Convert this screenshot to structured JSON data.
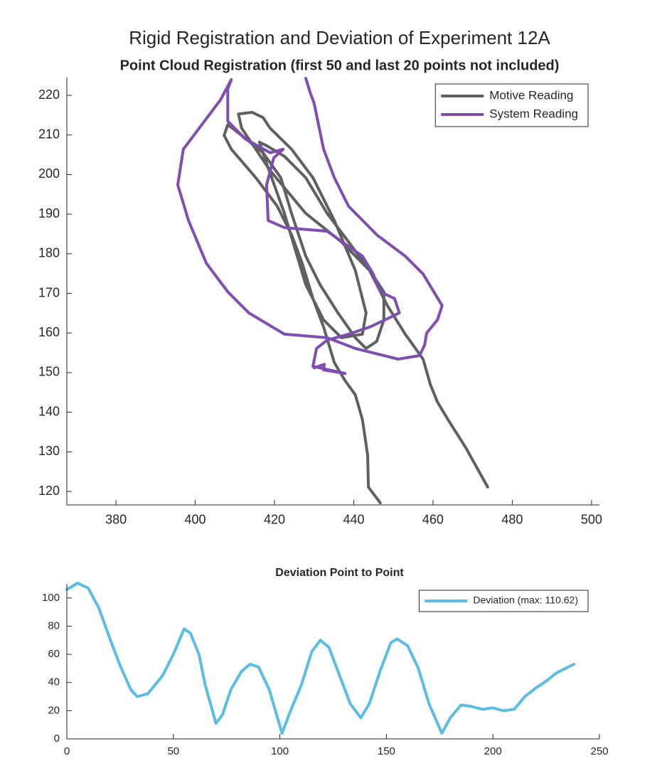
{
  "chart_data": [
    {
      "type": "line",
      "title": "Rigid Registration and Deviation of Experiment 12A",
      "subtitle": "Point Cloud Registration (first 50 and last 20 points not included)",
      "xlim": [
        367.6,
        502
      ],
      "ylim": [
        116.6,
        224.5
      ],
      "xticks": [
        380,
        400,
        420,
        440,
        460,
        480,
        500
      ],
      "yticks": [
        120,
        130,
        140,
        150,
        160,
        170,
        180,
        190,
        200,
        210,
        220
      ],
      "legend": "northeast",
      "series": [
        {
          "name": "Motive Reading",
          "color": "#606060",
          "x": [
            473.8,
            468.3,
            463.8,
            461.1,
            459.3,
            457.5,
            453.0,
            448.5,
            444.0,
            438.7,
            433.3,
            427.9,
            422.5,
            418.0,
            416.2,
            418.0,
            422.5,
            427.9,
            432.4,
            436.9,
            442.2,
            443.1,
            440.4,
            435.1,
            429.7,
            424.3,
            418.9,
            417.1,
            414.4,
            410.9,
            411.7,
            418.9,
            427.9,
            436.9,
            444.0,
            447.6,
            447.6,
            445.8,
            443.1,
            440.4,
            436.0,
            431.5,
            427.9,
            424.3,
            421.6,
            417.1,
            411.7,
            408.2,
            407.3,
            409.1,
            415.3,
            420.7,
            424.3,
            427.0,
            429.7,
            432.4,
            435.1,
            437.8,
            440.4,
            442.2,
            443.5,
            443.7,
            446.7
          ],
          "values": [
            121.1,
            131.0,
            138.1,
            142.6,
            147.1,
            153.4,
            159.7,
            166.9,
            175.8,
            183.0,
            190.2,
            199.2,
            204.6,
            207.3,
            208.2,
            202.8,
            190.2,
            172.2,
            163.3,
            158.8,
            159.7,
            165.1,
            175.8,
            188.4,
            199.2,
            206.4,
            211.7,
            214.4,
            215.7,
            215.3,
            211.7,
            201.0,
            190.2,
            183.0,
            175.8,
            170.4,
            163.3,
            157.9,
            156.1,
            158.8,
            165.1,
            172.2,
            179.4,
            190.2,
            199.2,
            205.5,
            209.9,
            212.6,
            209.9,
            206.4,
            199.2,
            192.0,
            184.8,
            177.6,
            168.7,
            161.5,
            152.5,
            148.0,
            144.4,
            138.1,
            129.2,
            121.1,
            117.1
          ]
        },
        {
          "name": "System Reading",
          "color": "#7e4fb0",
          "x": [
            427.9,
            429.0,
            430.0,
            432.4,
            435.1,
            438.7,
            445.8,
            453.0,
            457.5,
            460.2,
            462.3,
            461.1,
            458.4,
            457.9,
            456.6,
            451.2,
            440.4,
            433.3,
            422.5,
            413.5,
            408.2,
            402.8,
            398.3,
            395.6,
            397.0,
            401.0,
            406.4,
            409.1,
            408.2,
            408.2,
            412.6,
            418.9,
            422.2,
            419.8,
            418.0,
            418.4,
            422.5,
            433.3,
            442.2,
            444.9,
            446.7,
            450.3,
            451.5,
            448.5,
            444.0,
            438.7,
            433.3,
            430.6,
            429.7,
            437.8,
            432.4,
            432.6,
            430.0
          ],
          "values": [
            224.3,
            220.7,
            218.0,
            206.4,
            199.2,
            192.0,
            184.8,
            179.4,
            174.9,
            170.4,
            166.9,
            163.3,
            160.0,
            157.0,
            154.3,
            153.4,
            156.1,
            158.8,
            159.7,
            165.1,
            170.4,
            177.6,
            188.4,
            197.4,
            206.4,
            211.7,
            218.9,
            224.0,
            221.6,
            213.5,
            209.0,
            205.5,
            206.4,
            204.2,
            197.4,
            188.4,
            186.6,
            185.7,
            179.4,
            174.9,
            170.4,
            168.7,
            165.1,
            163.6,
            161.5,
            159.7,
            158.2,
            156.1,
            151.6,
            149.8,
            150.7,
            152.1,
            151.2
          ]
        }
      ]
    },
    {
      "type": "line",
      "title": "Deviation Point to Point",
      "xlim": [
        0,
        250
      ],
      "ylim": [
        0,
        110
      ],
      "xticks": [
        0,
        50,
        100,
        150,
        200,
        250
      ],
      "yticks": [
        0,
        20,
        40,
        60,
        80,
        100
      ],
      "legend": "northeast",
      "series": [
        {
          "name": "Deviation (max: 110.62)",
          "color": "#5bbde4",
          "x": [
            0,
            5,
            10,
            15,
            20,
            25,
            30,
            33,
            38,
            45,
            50,
            55,
            58,
            62,
            65,
            70,
            73,
            77,
            82,
            86,
            90,
            95,
            101,
            105,
            110,
            115,
            119,
            123,
            128,
            133,
            138,
            142,
            147,
            152,
            155,
            160,
            165,
            170,
            176,
            180,
            185,
            190,
            195,
            200,
            205,
            210,
            215,
            220,
            225,
            230,
            238
          ],
          "values": [
            106,
            110.5,
            107,
            93,
            72,
            52,
            35,
            30,
            32,
            45,
            60,
            78,
            75,
            60,
            38,
            11,
            17,
            35,
            48,
            53,
            51,
            35,
            4,
            20,
            38,
            62,
            70,
            65,
            45,
            25,
            15,
            25,
            48,
            68,
            71,
            66,
            50,
            25,
            4,
            15,
            24,
            23,
            21,
            22,
            20,
            21,
            30,
            36,
            41,
            47,
            53
          ]
        }
      ]
    }
  ]
}
